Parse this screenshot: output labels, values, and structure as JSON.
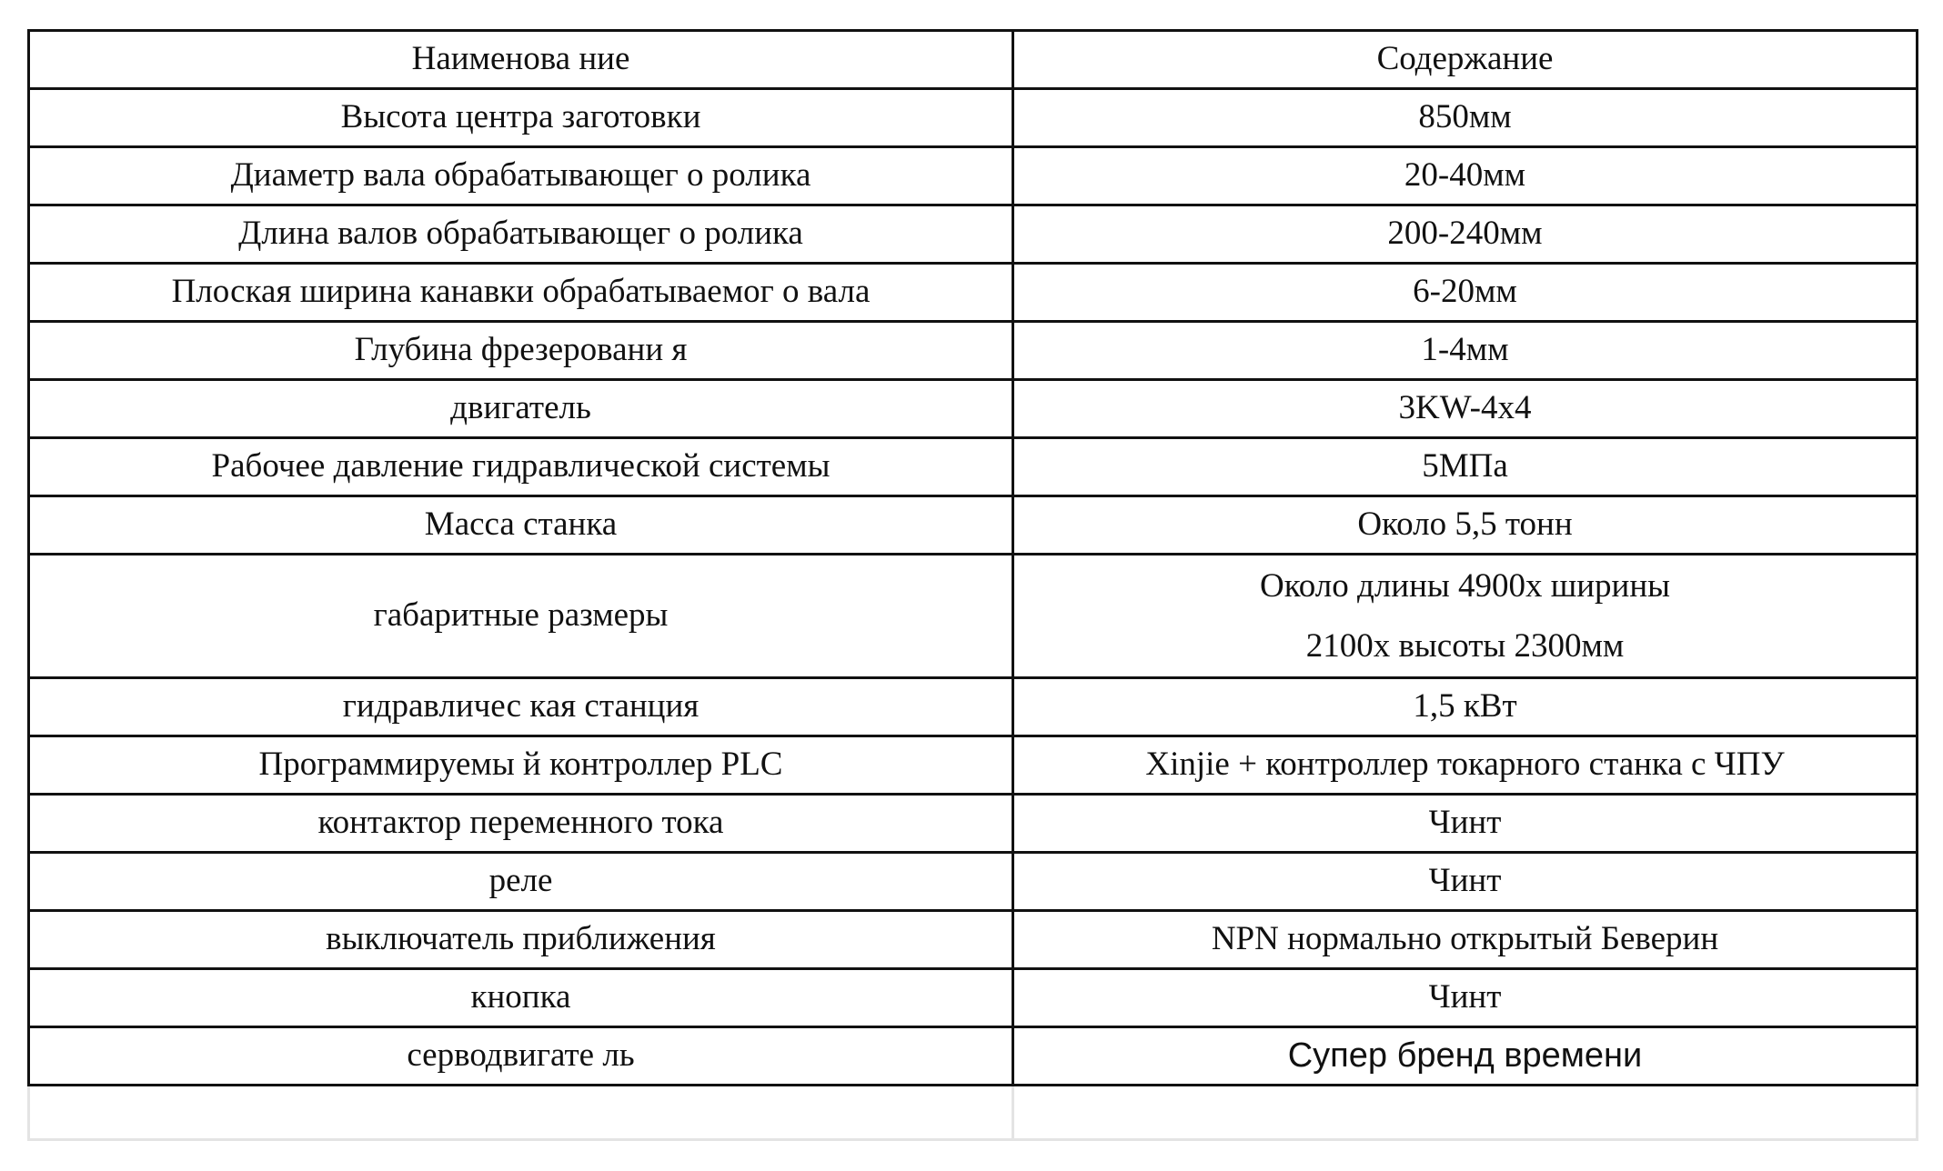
{
  "table": {
    "header": [
      "Наименова ние",
      "Содержание"
    ],
    "rows": [
      [
        "Высота центра заготовки",
        "850мм"
      ],
      [
        "Диаметр вала обрабатывающег о ролика",
        "20-40мм"
      ],
      [
        "Длина валов обрабатывающег о ролика",
        "200-240мм"
      ],
      [
        "Плоская ширина канавки обрабатываемог о вала",
        "6-20мм"
      ],
      [
        "Глубина фрезеровани я",
        "1-4мм"
      ],
      [
        "двигатель",
        "3KW-4x4"
      ],
      [
        "Рабочее давление гидравлической системы",
        "5МПа"
      ],
      [
        "Масса станка",
        "Около 5,5 тонн"
      ],
      [
        "габаритные размеры",
        [
          "Около длины 4900х ширины",
          "2100х высоты 2300мм"
        ]
      ],
      [
        "гидравличес кая станция",
        "1,5 кВт"
      ],
      [
        "Программируемы й контроллер PLC",
        "Xinjie + контроллер токарного станка с ЧПУ"
      ],
      [
        "контактор переменного тока",
        "Чинт"
      ],
      [
        "реле",
        "Чинт"
      ],
      [
        "выключатель приближения",
        "NPN нормально открытый Беверин"
      ],
      [
        "кнопка",
        "Чинт"
      ],
      [
        "серводвигате ль",
        "Супер бренд времени"
      ]
    ]
  }
}
